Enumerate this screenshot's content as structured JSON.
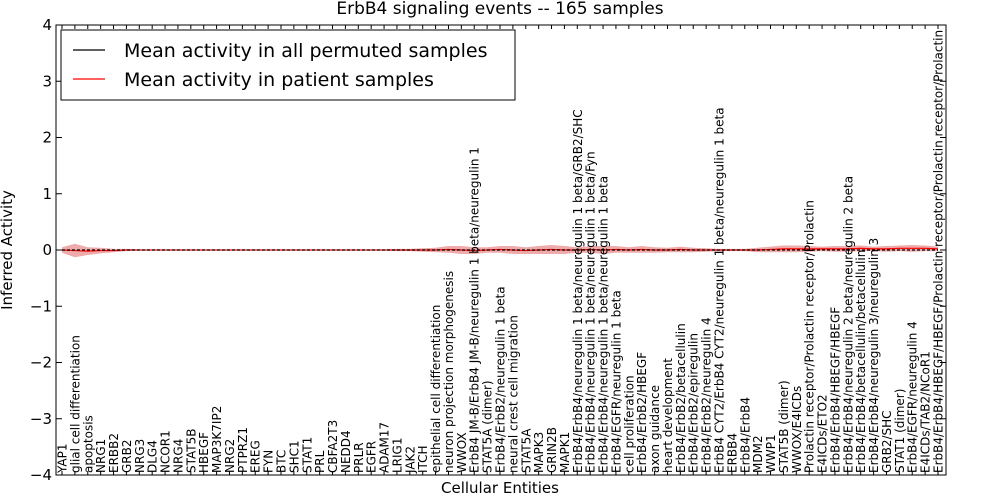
{
  "chart_data": {
    "type": "line",
    "title": "ErbB4 signaling events -- 165 samples",
    "xlabel": "Cellular Entities",
    "ylabel": "Inferred Activity",
    "ylim": [
      -4,
      4
    ],
    "yticks": [
      -4,
      -3,
      -2,
      -1,
      0,
      1,
      2,
      3,
      4
    ],
    "grid": false,
    "legend_position": "top-left",
    "categories": [
      "YAP1",
      "glial cell differentiation",
      "apoptosis",
      "NRG1",
      "ERBB2",
      "GRB2",
      "NRG3",
      "DLG4",
      "NCOR1",
      "NRG4",
      "STAT5B",
      "HBEGF",
      "MAP3K7IP2",
      "NRG2",
      "PTPRZ1",
      "EREG",
      "FYN",
      "BTC",
      "SHC1",
      "STAT1",
      "PRL",
      "CBFA2T3",
      "NEDD4",
      "PRLR",
      "EGFR",
      "ADAM17",
      "LRIG1",
      "JAK2",
      "ITCH",
      "epithelial cell differentiation",
      "neuron projection morphogenesis",
      "WWOX",
      "ErbB4 JM-B/ErbB4 JM-B/neuregulin 1 beta/neuregulin 1",
      "STAT5A (dimer)",
      "ErbB4/ErbB2/neuregulin 1 beta",
      "neural crest cell migration",
      "STAT5A",
      "MAPK3",
      "GRIN2B",
      "MAPK1",
      "ErbB4/ErbB4/neuregulin 1 beta/neuregulin 1 beta/GRB2/SHC",
      "ErbB4/ErbB4/neuregulin 1 beta/neuregulin 1 beta/Fyn",
      "ErbB4/ErbB4/neuregulin 1 beta/neuregulin 1 beta",
      "ErbB4/EGFR/neuregulin 1 beta",
      "cell proliferation",
      "ErbB4/ErbB2/HBEGF",
      "axon guidance",
      "heart development",
      "ErbB4/ErbB2/betacellulin",
      "ErbB4/ErbB2/epiregulin",
      "ErbB4/ErbB2/neuregulin 4",
      "ErbB4 CYT2/ErbB4 CYT2/neuregulin 1 beta/neuregulin 1 beta",
      "ERBB4",
      "ErbB4/ErbB4",
      "MDM2",
      "WWP1",
      "STAT5B (dimer)",
      "WWOX/E4ICDs",
      "Prolactin receptor/Prolactin receptor/Prolactin",
      "E4ICDs/ETO2",
      "ErbB4/ErbB4/HBEGF/HBEGF",
      "ErbB4/ErbB4/neuregulin 2 beta/neuregulin 2 beta",
      "ErbB4/ErbB4/betacellulin/betacellulin",
      "ErbB4/ErbB4/neuregulin 3/neuregulin 3",
      "GRB2/SHC",
      "STAT1 (dimer)",
      "ErbB4/EGFR/neuregulin 4",
      "E4ICDs/TAB2/NCoR1",
      "ErbB4/ErbB4/HBEGF/HBEGF/Prolactin receptor/Prolactin receptor/Prolactin"
    ],
    "series": [
      {
        "name": "Mean activity in all permuted samples",
        "color": "#000000",
        "values": [
          0,
          0,
          0,
          0,
          0,
          0,
          0,
          0,
          0,
          0,
          0,
          0,
          0,
          0,
          0,
          0,
          0,
          0,
          0,
          0,
          0,
          0,
          0,
          0,
          0,
          0,
          0,
          0,
          0,
          0,
          0,
          0,
          0,
          0,
          0,
          0,
          0,
          0,
          0,
          0,
          0,
          0,
          0,
          0,
          0,
          0,
          0,
          0,
          0,
          0,
          0,
          0,
          0,
          0,
          0,
          0,
          0,
          0,
          0,
          0,
          0,
          0,
          0,
          0,
          0,
          0,
          0,
          0,
          0
        ]
      },
      {
        "name": "Mean activity in patient samples",
        "color": "#ff0000",
        "band_color": "#e06666",
        "values": [
          0.0,
          -0.01,
          -0.02,
          -0.01,
          -0.01,
          0,
          0,
          0,
          0,
          0,
          0,
          0,
          0,
          0,
          0,
          0,
          0,
          0,
          0,
          0,
          0,
          0,
          0,
          0,
          0,
          0,
          0,
          0,
          0,
          0,
          0.01,
          0.0,
          -0.01,
          0.0,
          0.01,
          0.0,
          -0.01,
          0.0,
          0.01,
          0.0,
          0.0,
          0.01,
          0.0,
          0.01,
          0.0,
          0.01,
          0.0,
          0.0,
          0.01,
          0.0,
          0.0,
          0.0,
          0.0,
          0.0,
          0.0,
          0.01,
          0.02,
          0.02,
          0.02,
          0.02,
          0.02,
          0.02,
          0.03,
          0.02,
          0.02,
          0.03,
          0.03,
          0.03,
          0.02
        ],
        "band_halfwidth": [
          0.05,
          0.12,
          0.07,
          0.05,
          0.03,
          0.02,
          0.01,
          0.01,
          0.01,
          0.01,
          0.01,
          0.01,
          0.01,
          0.01,
          0.01,
          0.01,
          0.01,
          0.01,
          0.01,
          0.01,
          0.01,
          0.01,
          0.01,
          0.01,
          0.01,
          0.01,
          0.02,
          0.02,
          0.03,
          0.04,
          0.06,
          0.07,
          0.06,
          0.05,
          0.06,
          0.07,
          0.06,
          0.07,
          0.08,
          0.07,
          0.05,
          0.06,
          0.07,
          0.06,
          0.05,
          0.06,
          0.05,
          0.04,
          0.05,
          0.04,
          0.03,
          0.02,
          0.02,
          0.02,
          0.04,
          0.05,
          0.06,
          0.06,
          0.05,
          0.04,
          0.05,
          0.05,
          0.05,
          0.04,
          0.05,
          0.05,
          0.06,
          0.05,
          0.04
        ]
      }
    ]
  }
}
